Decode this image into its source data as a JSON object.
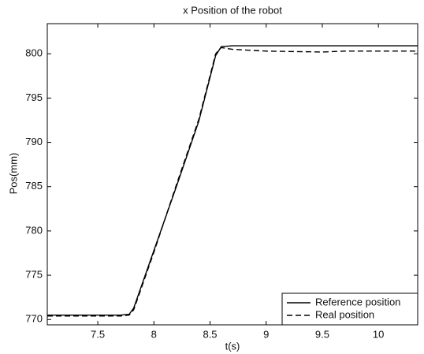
{
  "chart_data": {
    "type": "line",
    "title": "x Position of the robot",
    "x_label": "t(s)",
    "y_label": "Pos(mm)",
    "x": [
      7.05,
      7.7,
      7.78,
      7.82,
      8.0,
      8.2,
      8.4,
      8.55,
      8.6,
      8.7,
      9.0,
      9.5,
      9.7,
      10.0,
      10.35
    ],
    "series": [
      {
        "name": "Reference position",
        "color": "#000000",
        "style": "solid",
        "values": [
          770.5,
          770.5,
          770.6,
          771.3,
          777.8,
          785,
          792.4,
          799.8,
          800.8,
          800.9,
          800.9,
          800.9,
          800.9,
          800.9,
          800.9
        ]
      },
      {
        "name": "Real position",
        "color": "#000000",
        "style": "dashed",
        "values": [
          770.4,
          770.4,
          770.5,
          771.1,
          777.6,
          785.2,
          792.6,
          800,
          800.7,
          800.5,
          800.3,
          800.2,
          800.3,
          800.3,
          800.3
        ]
      }
    ],
    "xlim": [
      7.05,
      10.35
    ],
    "ylim": [
      769.4,
      803.4
    ],
    "xticks": [
      7.5,
      8,
      8.5,
      9,
      9.5,
      10
    ],
    "yticks": [
      770,
      775,
      780,
      785,
      790,
      795,
      800
    ],
    "legend": "lower right",
    "grid": false
  }
}
